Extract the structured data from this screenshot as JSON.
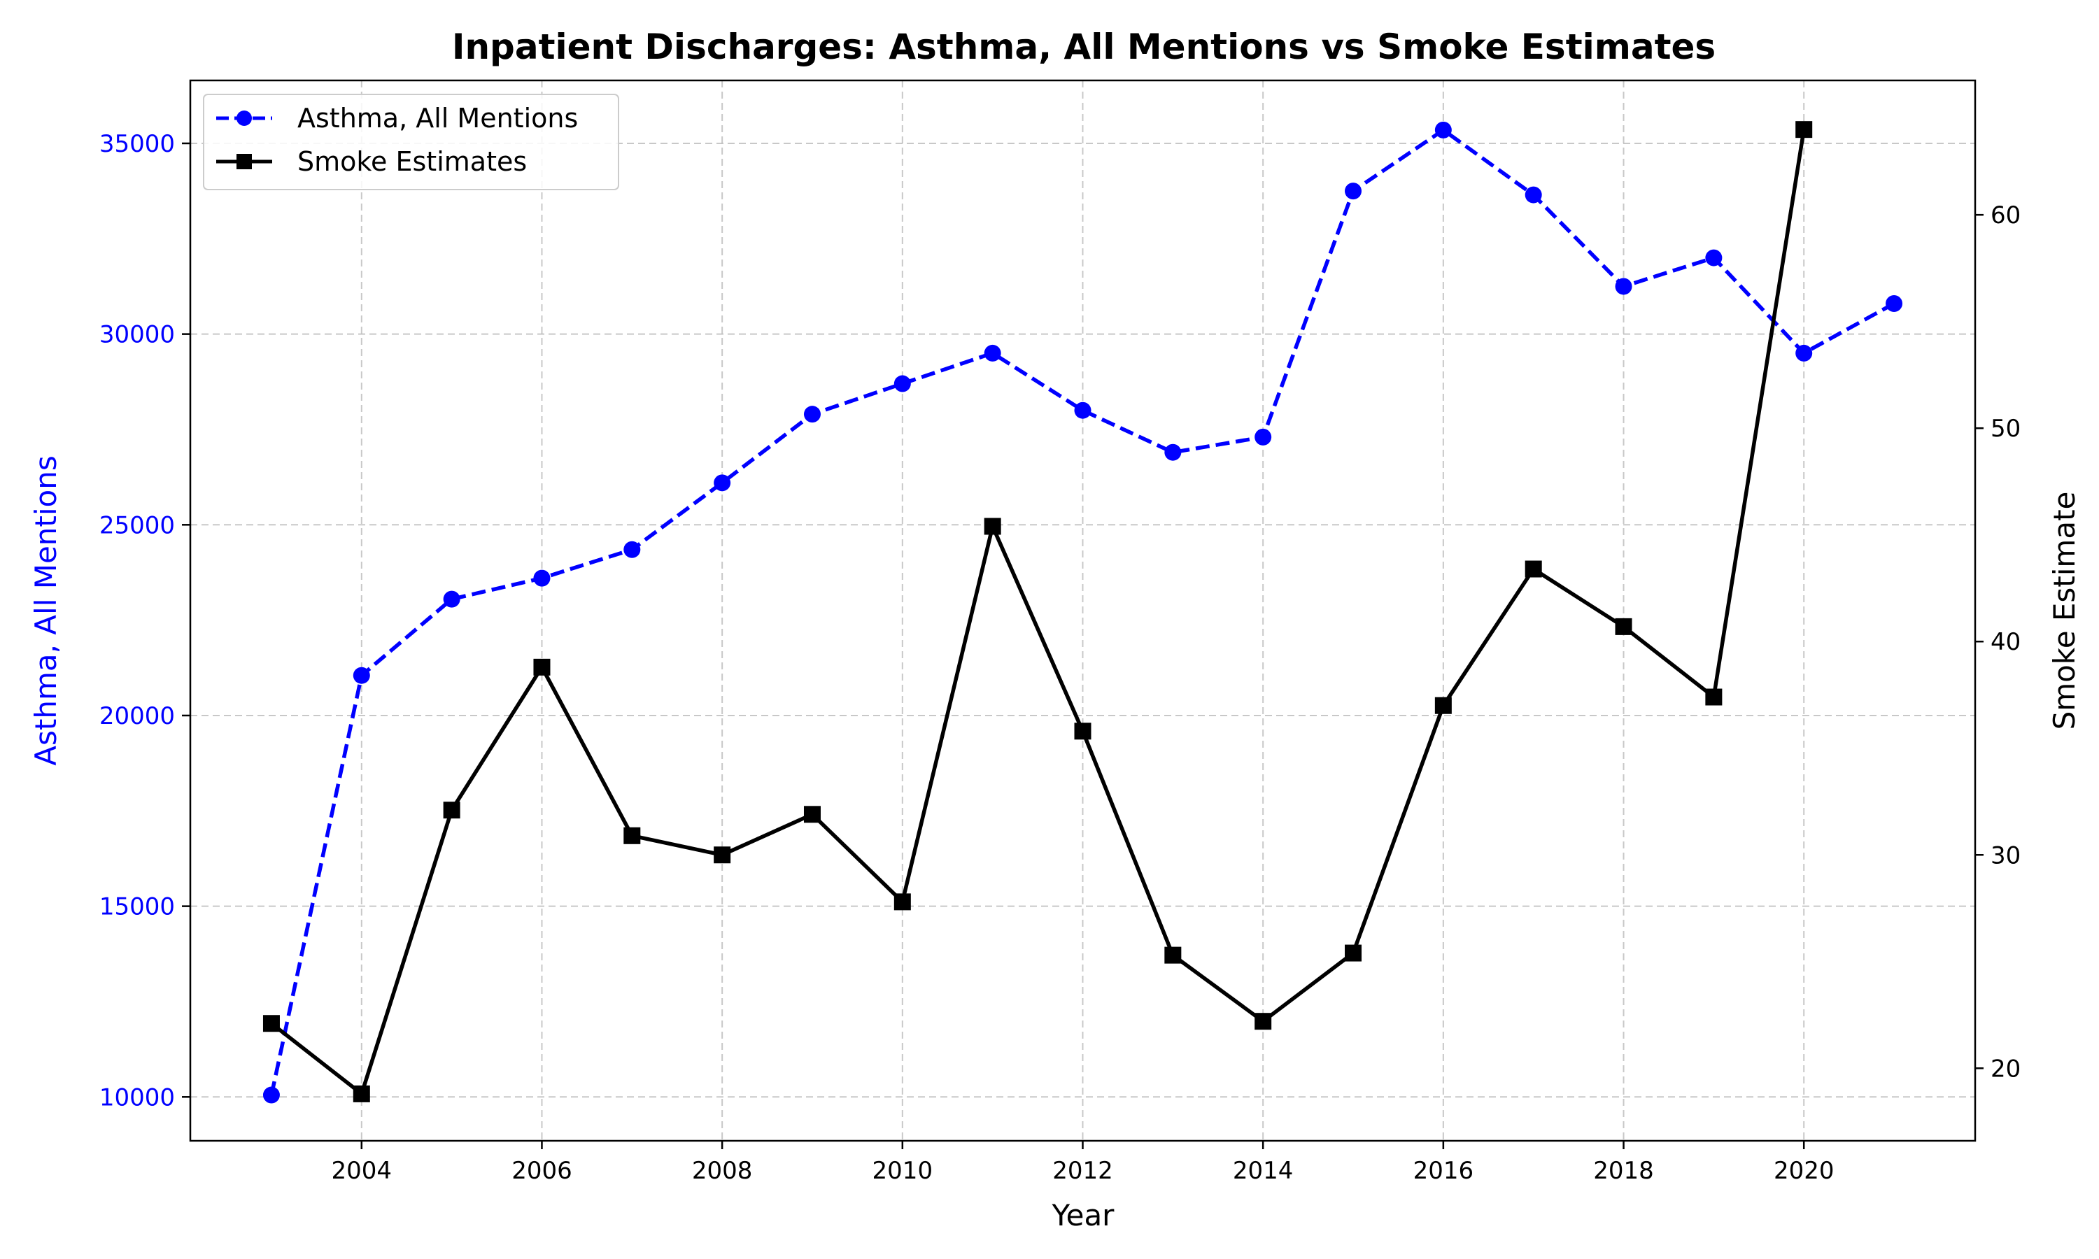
{
  "chart_data": {
    "type": "line",
    "title": "Inpatient Discharges: Asthma, All Mentions vs Smoke Estimates",
    "xlabel": "Year",
    "ylabel_left": "Asthma, All Mentions",
    "ylabel_right": "Smoke Estimate",
    "x": [
      2003,
      2004,
      2005,
      2006,
      2007,
      2008,
      2009,
      2010,
      2011,
      2012,
      2013,
      2014,
      2015,
      2016,
      2017,
      2018,
      2019,
      2020,
      2021
    ],
    "xlim": [
      2002.1,
      2021.9
    ],
    "ylim_left": [
      8850,
      36650
    ],
    "ylim_right": [
      16.6,
      66.3
    ],
    "x_ticks": [
      2004,
      2006,
      2008,
      2010,
      2012,
      2014,
      2016,
      2018,
      2020
    ],
    "y_ticks_left": [
      10000,
      15000,
      20000,
      25000,
      30000,
      35000
    ],
    "y_ticks_right": [
      20,
      30,
      40,
      50,
      60
    ],
    "grid": true,
    "legend_position": "top-left",
    "series": [
      {
        "name": "Asthma, All Mentions",
        "axis": "left",
        "color": "#0000ff",
        "linestyle": "dashed",
        "marker": "circle",
        "x": [
          2003,
          2004,
          2005,
          2006,
          2007,
          2008,
          2009,
          2010,
          2011,
          2012,
          2013,
          2014,
          2015,
          2016,
          2017,
          2018,
          2019,
          2020,
          2021
        ],
        "values": [
          10050,
          21050,
          23050,
          23600,
          24350,
          26100,
          27900,
          28700,
          29500,
          28000,
          26900,
          27300,
          33750,
          35350,
          33650,
          31250,
          32000,
          29500,
          30800
        ]
      },
      {
        "name": "Smoke Estimates",
        "axis": "right",
        "color": "#000000",
        "linestyle": "solid",
        "marker": "square",
        "x": [
          2003,
          2004,
          2005,
          2006,
          2007,
          2008,
          2009,
          2010,
          2011,
          2012,
          2013,
          2014,
          2015,
          2016,
          2017,
          2018,
          2019,
          2020
        ],
        "values": [
          22.1,
          18.8,
          32.1,
          38.8,
          30.9,
          30.0,
          31.9,
          27.8,
          45.4,
          35.8,
          25.3,
          22.2,
          25.4,
          37.0,
          43.4,
          40.7,
          37.4,
          64.0
        ]
      }
    ]
  }
}
